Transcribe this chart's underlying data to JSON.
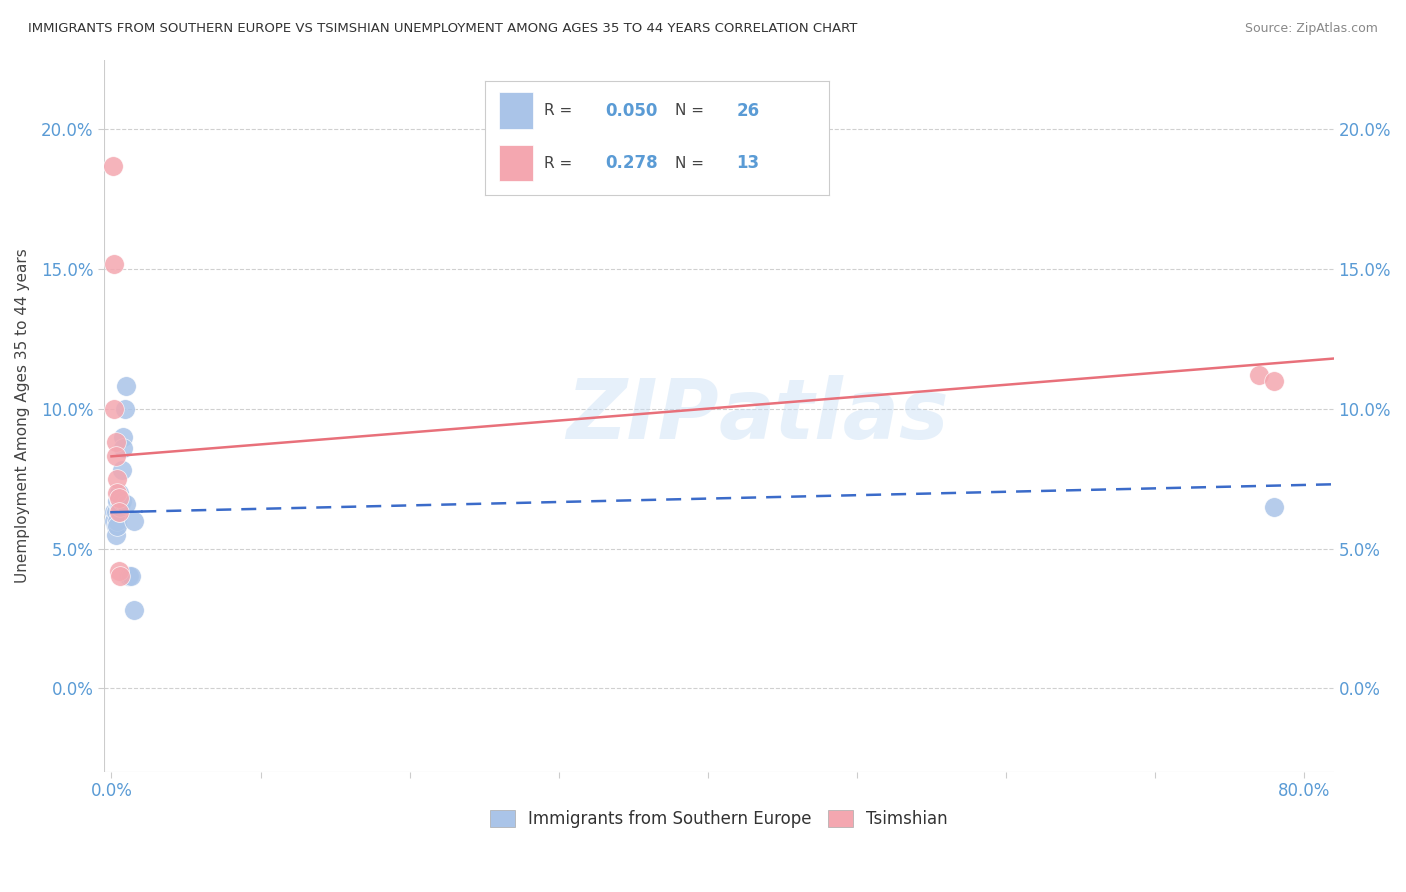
{
  "title": "IMMIGRANTS FROM SOUTHERN EUROPE VS TSIMSHIAN UNEMPLOYMENT AMONG AGES 35 TO 44 YEARS CORRELATION CHART",
  "source": "Source: ZipAtlas.com",
  "ylabel": "Unemployment Among Ages 35 to 44 years",
  "xlabel_ticks_labels": [
    "0.0%",
    "",
    "",
    "",
    "",
    "",
    "",
    "",
    "80.0%"
  ],
  "xlabel_vals": [
    0.0,
    0.1,
    0.2,
    0.3,
    0.4,
    0.5,
    0.6,
    0.7,
    0.8
  ],
  "ylabel_ticks": [
    "0.0%",
    "5.0%",
    "10.0%",
    "15.0%",
    "20.0%"
  ],
  "ylabel_vals": [
    0.0,
    0.05,
    0.1,
    0.15,
    0.2
  ],
  "xlim": [
    -0.005,
    0.82
  ],
  "ylim": [
    -0.03,
    0.225
  ],
  "legend_labels": [
    "Immigrants from Southern Europe",
    "Tsimshian"
  ],
  "blue_R": "0.050",
  "blue_N": "26",
  "pink_R": "0.278",
  "pink_N": "13",
  "blue_color": "#aac4e8",
  "pink_color": "#f4a7b0",
  "blue_line_color": "#3b6bc9",
  "pink_line_color": "#e8707a",
  "blue_scatter": [
    [
      0.002,
      0.063
    ],
    [
      0.002,
      0.06
    ],
    [
      0.003,
      0.058
    ],
    [
      0.003,
      0.055
    ],
    [
      0.003,
      0.063
    ],
    [
      0.004,
      0.067
    ],
    [
      0.004,
      0.06
    ],
    [
      0.004,
      0.058
    ],
    [
      0.005,
      0.07
    ],
    [
      0.005,
      0.068
    ],
    [
      0.005,
      0.065
    ],
    [
      0.006,
      0.063
    ],
    [
      0.006,
      0.065
    ],
    [
      0.007,
      0.078
    ],
    [
      0.007,
      0.067
    ],
    [
      0.008,
      0.09
    ],
    [
      0.008,
      0.086
    ],
    [
      0.009,
      0.1
    ],
    [
      0.01,
      0.108
    ],
    [
      0.01,
      0.066
    ],
    [
      0.011,
      0.04
    ],
    [
      0.012,
      0.04
    ],
    [
      0.013,
      0.04
    ],
    [
      0.015,
      0.028
    ],
    [
      0.015,
      0.06
    ],
    [
      0.78,
      0.065
    ]
  ],
  "pink_scatter": [
    [
      0.001,
      0.187
    ],
    [
      0.002,
      0.152
    ],
    [
      0.002,
      0.1
    ],
    [
      0.003,
      0.088
    ],
    [
      0.003,
      0.083
    ],
    [
      0.004,
      0.075
    ],
    [
      0.004,
      0.07
    ],
    [
      0.005,
      0.068
    ],
    [
      0.005,
      0.063
    ],
    [
      0.005,
      0.042
    ],
    [
      0.006,
      0.04
    ],
    [
      0.77,
      0.112
    ],
    [
      0.78,
      0.11
    ]
  ],
  "watermark": "ZIPatlas",
  "background_color": "#ffffff",
  "blue_line": {
    "x0": 0.0,
    "y0": 0.063,
    "x1": 0.82,
    "y1": 0.073
  },
  "pink_line": {
    "x0": 0.0,
    "y0": 0.083,
    "x1": 0.82,
    "y1": 0.118
  }
}
